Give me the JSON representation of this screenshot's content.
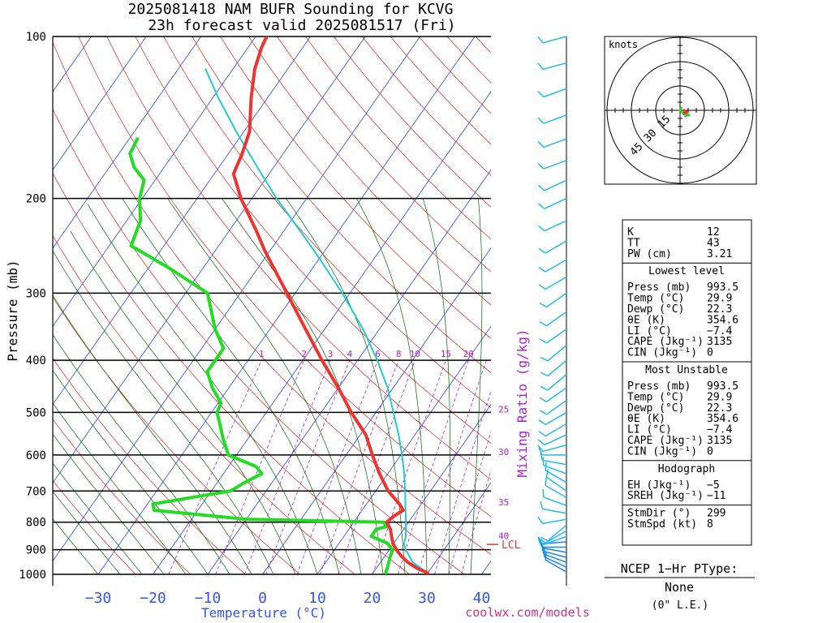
{
  "title_line1": "2025081418 NAM BUFR Sounding for KCVG",
  "title_line2": "23h forecast valid 2025081517 (Fri)",
  "footer_url": "coolwx.com/models",
  "chart_data": {
    "type": "skew-t",
    "xlabel": "Temperature (°C)",
    "ylabel": "Pressure (mb)",
    "mixing_ratio_label": "Mixing Ratio (g/kg)",
    "pressure_range_mb": [
      1000,
      100
    ],
    "pressure_ticks": [
      "100",
      "200",
      "300",
      "400",
      "500",
      "600",
      "700",
      "800",
      "900",
      "1000"
    ],
    "temperature_ticks": [
      "−30",
      "−20",
      "−10",
      "0",
      "10",
      "20",
      "30",
      "40"
    ],
    "mixing_ratio_labels": [
      "1",
      "2",
      "3",
      "4",
      "6",
      "8",
      "10",
      "15",
      "20",
      "25",
      "30",
      "35",
      "40"
    ],
    "lcl_label": "LCL",
    "lcl_pressure_mb": 880,
    "colors": {
      "temperature": "#ee3333",
      "dewpoint": "#22dd22",
      "parcel": "#22cccc",
      "isotherm": "#2244ee",
      "dry_adiabat": "#dd2222",
      "moist_adiabat": "#006600",
      "mixing_ratio": "#aa22cc",
      "wind_barb": "#22bbee"
    },
    "temperature_profile": [
      {
        "p": 993.5,
        "t": 29.9
      },
      {
        "p": 975,
        "t": 27.5
      },
      {
        "p": 950,
        "t": 25.0
      },
      {
        "p": 925,
        "t": 23.0
      },
      {
        "p": 900,
        "t": 21.3
      },
      {
        "p": 875,
        "t": 19.8
      },
      {
        "p": 850,
        "t": 18.7
      },
      {
        "p": 825,
        "t": 17.6
      },
      {
        "p": 800,
        "t": 16.0
      },
      {
        "p": 780,
        "t": 16.5
      },
      {
        "p": 760,
        "t": 17.5
      },
      {
        "p": 740,
        "t": 16.0
      },
      {
        "p": 700,
        "t": 12.3
      },
      {
        "p": 650,
        "t": 8.5
      },
      {
        "p": 600,
        "t": 4.8
      },
      {
        "p": 550,
        "t": 1.0
      },
      {
        "p": 500,
        "t": -4.5
      },
      {
        "p": 450,
        "t": -10.0
      },
      {
        "p": 400,
        "t": -16.5
      },
      {
        "p": 350,
        "t": -23.5
      },
      {
        "p": 300,
        "t": -31.5
      },
      {
        "p": 270,
        "t": -37.0
      },
      {
        "p": 250,
        "t": -41.0
      },
      {
        "p": 230,
        "t": -45.0
      },
      {
        "p": 200,
        "t": -52.0
      },
      {
        "p": 180,
        "t": -56.5
      },
      {
        "p": 165,
        "t": -57.5
      },
      {
        "p": 150,
        "t": -59.0
      },
      {
        "p": 130,
        "t": -63.0
      },
      {
        "p": 115,
        "t": -66.0
      },
      {
        "p": 105,
        "t": -67.5
      },
      {
        "p": 100,
        "t": -68.0
      }
    ],
    "dewpoint_profile": [
      {
        "p": 993.5,
        "t": 22.3
      },
      {
        "p": 975,
        "t": 22.0
      },
      {
        "p": 925,
        "t": 21.0
      },
      {
        "p": 900,
        "t": 20.6
      },
      {
        "p": 875,
        "t": 18.8
      },
      {
        "p": 850,
        "t": 15.0
      },
      {
        "p": 825,
        "t": 15.0
      },
      {
        "p": 815,
        "t": 16.5
      },
      {
        "p": 800,
        "t": 15.5
      },
      {
        "p": 790,
        "t": -10.0
      },
      {
        "p": 760,
        "t": -28.0
      },
      {
        "p": 740,
        "t": -29.0
      },
      {
        "p": 700,
        "t": -16.5
      },
      {
        "p": 675,
        "t": -15.0
      },
      {
        "p": 650,
        "t": -13.0
      },
      {
        "p": 630,
        "t": -15.0
      },
      {
        "p": 600,
        "t": -21.5
      },
      {
        "p": 560,
        "t": -24.5
      },
      {
        "p": 500,
        "t": -29.0
      },
      {
        "p": 480,
        "t": -29.5
      },
      {
        "p": 450,
        "t": -33.0
      },
      {
        "p": 420,
        "t": -36.0
      },
      {
        "p": 400,
        "t": -36.0
      },
      {
        "p": 380,
        "t": -36.0
      },
      {
        "p": 350,
        "t": -40.0
      },
      {
        "p": 300,
        "t": -46.0
      },
      {
        "p": 270,
        "t": -56.0
      },
      {
        "p": 245,
        "t": -66.0
      },
      {
        "p": 220,
        "t": -67.5
      },
      {
        "p": 200,
        "t": -70.5
      },
      {
        "p": 185,
        "t": -72.0
      },
      {
        "p": 175,
        "t": -75.5
      },
      {
        "p": 165,
        "t": -78.0
      },
      {
        "p": 155,
        "t": -78.5
      }
    ],
    "parcel_profile": [
      {
        "p": 993.5,
        "t": 29.9
      },
      {
        "p": 950,
        "t": 25.9
      },
      {
        "p": 900,
        "t": 23.0
      },
      {
        "p": 880,
        "t": 22.0
      },
      {
        "p": 850,
        "t": 21.3
      },
      {
        "p": 800,
        "t": 19.5
      },
      {
        "p": 750,
        "t": 17.5
      },
      {
        "p": 700,
        "t": 15.4
      },
      {
        "p": 650,
        "t": 13.0
      },
      {
        "p": 600,
        "t": 10.2
      },
      {
        "p": 550,
        "t": 7.0
      },
      {
        "p": 500,
        "t": 3.2
      },
      {
        "p": 450,
        "t": -1.0
      },
      {
        "p": 400,
        "t": -6.4
      },
      {
        "p": 350,
        "t": -13.0
      },
      {
        "p": 300,
        "t": -21.4
      },
      {
        "p": 270,
        "t": -27.5
      },
      {
        "p": 250,
        "t": -32.0
      },
      {
        "p": 230,
        "t": -37.0
      },
      {
        "p": 200,
        "t": -45.5
      },
      {
        "p": 175,
        "t": -53.0
      },
      {
        "p": 150,
        "t": -61.5
      },
      {
        "p": 130,
        "t": -69.0
      },
      {
        "p": 115,
        "t": -75.0
      }
    ],
    "wind_profile": [
      {
        "p": 990,
        "dir": 300,
        "spd": 7
      },
      {
        "p": 970,
        "dir": 295,
        "spd": 8
      },
      {
        "p": 950,
        "dir": 290,
        "spd": 8
      },
      {
        "p": 930,
        "dir": 285,
        "spd": 7
      },
      {
        "p": 910,
        "dir": 280,
        "spd": 6
      },
      {
        "p": 890,
        "dir": 270,
        "spd": 5
      },
      {
        "p": 870,
        "dir": 265,
        "spd": 5
      },
      {
        "p": 850,
        "dir": 250,
        "spd": 5
      },
      {
        "p": 830,
        "dir": 240,
        "spd": 6
      },
      {
        "p": 810,
        "dir": 230,
        "spd": 6
      },
      {
        "p": 790,
        "dir": 260,
        "spd": 5
      },
      {
        "p": 770,
        "dir": 280,
        "spd": 5
      },
      {
        "p": 745,
        "dir": 290,
        "spd": 5
      },
      {
        "p": 720,
        "dir": 300,
        "spd": 5
      },
      {
        "p": 700,
        "dir": 305,
        "spd": 5
      },
      {
        "p": 675,
        "dir": 300,
        "spd": 5
      },
      {
        "p": 650,
        "dir": 290,
        "spd": 5
      },
      {
        "p": 625,
        "dir": 280,
        "spd": 5
      },
      {
        "p": 600,
        "dir": 270,
        "spd": 5
      },
      {
        "p": 575,
        "dir": 255,
        "spd": 5
      },
      {
        "p": 550,
        "dir": 245,
        "spd": 5
      },
      {
        "p": 525,
        "dir": 240,
        "spd": 5
      },
      {
        "p": 500,
        "dir": 240,
        "spd": 5
      },
      {
        "p": 475,
        "dir": 235,
        "spd": 5
      },
      {
        "p": 450,
        "dir": 235,
        "spd": 5
      },
      {
        "p": 425,
        "dir": 230,
        "spd": 5
      },
      {
        "p": 400,
        "dir": 230,
        "spd": 5
      },
      {
        "p": 375,
        "dir": 230,
        "spd": 5
      },
      {
        "p": 350,
        "dir": 235,
        "spd": 5
      },
      {
        "p": 325,
        "dir": 235,
        "spd": 5
      },
      {
        "p": 300,
        "dir": 235,
        "spd": 5
      },
      {
        "p": 280,
        "dir": 240,
        "spd": 5
      },
      {
        "p": 260,
        "dir": 240,
        "spd": 5
      },
      {
        "p": 240,
        "dir": 240,
        "spd": 5
      },
      {
        "p": 220,
        "dir": 245,
        "spd": 5
      },
      {
        "p": 200,
        "dir": 245,
        "spd": 5
      },
      {
        "p": 185,
        "dir": 245,
        "spd": 5
      },
      {
        "p": 170,
        "dir": 250,
        "spd": 5
      },
      {
        "p": 155,
        "dir": 250,
        "spd": 5
      },
      {
        "p": 140,
        "dir": 250,
        "spd": 5
      },
      {
        "p": 125,
        "dir": 250,
        "spd": 5
      },
      {
        "p": 112,
        "dir": 255,
        "spd": 5
      },
      {
        "p": 100,
        "dir": 255,
        "spd": 5
      }
    ],
    "hodograph": {
      "units_label": "knots",
      "ring_labels": [
        "15",
        "30",
        "45"
      ],
      "rings_kt": [
        15,
        30,
        45
      ],
      "trace": [
        {
          "u": 1,
          "v": 2
        },
        {
          "u": 0,
          "v": 0
        },
        {
          "u": 2,
          "v": -2
        },
        {
          "u": 4,
          "v": -2
        },
        {
          "u": 6,
          "v": -3
        },
        {
          "u": 4,
          "v": -3
        },
        {
          "u": 3,
          "v": -4
        },
        {
          "u": 4,
          "v": -1
        }
      ],
      "storm_motion_uv": {
        "u": 4,
        "v": -1
      }
    }
  },
  "stats": {
    "indices": [
      {
        "label": "K",
        "value": "12"
      },
      {
        "label": "TT",
        "value": "43"
      },
      {
        "label": "PW (cm)",
        "value": "3.21"
      }
    ],
    "lowest_level": {
      "title": "Lowest level",
      "rows": [
        {
          "label": "Press (mb)",
          "value": "993.5"
        },
        {
          "label": "Temp (°C)",
          "value": "29.9"
        },
        {
          "label": "Dewp (°C)",
          "value": "22.3"
        },
        {
          "label": "θE (K)",
          "value": "354.6"
        },
        {
          "label": "LI (°C)",
          "value": "−7.4"
        },
        {
          "label": "CAPE (Jkg⁻¹)",
          "value": "3135"
        },
        {
          "label": "CIN (Jkg⁻¹)",
          "value": "0"
        }
      ]
    },
    "most_unstable": {
      "title": "Most Unstable",
      "rows": [
        {
          "label": "Press (mb)",
          "value": "993.5"
        },
        {
          "label": "Temp (°C)",
          "value": "29.9"
        },
        {
          "label": "Dewp (°C)",
          "value": "22.3"
        },
        {
          "label": "θE (K)",
          "value": "354.6"
        },
        {
          "label": "LI (°C)",
          "value": "−7.4"
        },
        {
          "label": "CAPE (Jkg⁻¹)",
          "value": "3135"
        },
        {
          "label": "CIN (Jkg⁻¹)",
          "value": "0"
        }
      ]
    },
    "hodograph": {
      "title": "Hodograph",
      "rows": [
        {
          "label": "EH (Jkg⁻¹)",
          "value": "−5"
        },
        {
          "label": "SREH (Jkg⁻¹)",
          "value": "−11"
        },
        {
          "label": "StmDir (°)",
          "value": "299"
        },
        {
          "label": "StmSpd (kt)",
          "value": "8"
        }
      ]
    }
  },
  "ptype": {
    "title": "NCEP 1−Hr PType:",
    "value": "None",
    "amount": "(0\" L.E.)"
  }
}
